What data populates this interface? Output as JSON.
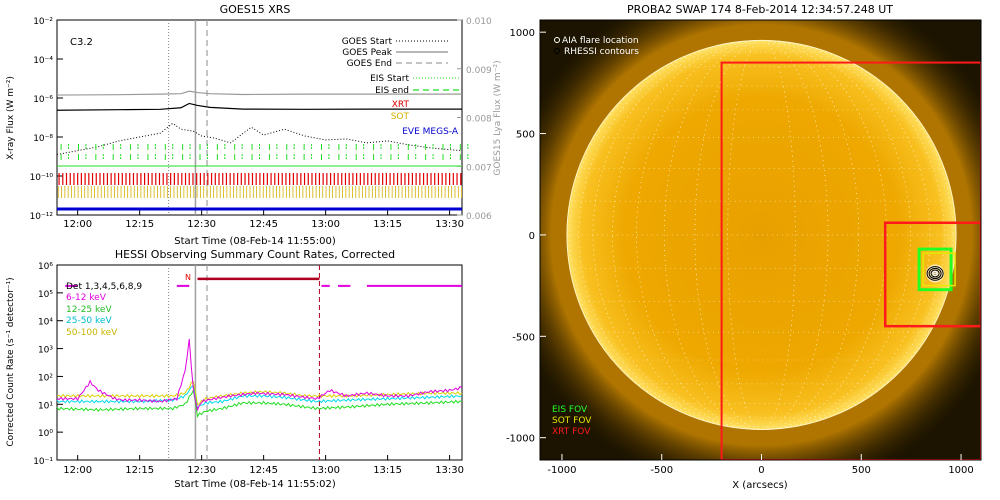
{
  "colors": {
    "black": "#000000",
    "grey": "#a0a0a0",
    "green": "#22dd22",
    "red": "#e00000",
    "gold": "#d4b000",
    "blue": "#0000d0",
    "magenta": "#e000e0",
    "cyan": "#00d8e8",
    "yellow": "#d8d000",
    "darkred": "#b00020",
    "sun_bg": "#0a0800",
    "fov_red": "#ff1a1a",
    "fov_green": "#22ff22",
    "fov_yellow": "#e8e800"
  },
  "chart_data": [
    {
      "type": "line",
      "title": "GOES15 XRS",
      "xlabel": "Start Time (08-Feb-14 11:55:00)",
      "ylabel": "X-ray Flux (W m⁻²)",
      "y2label": "GOES15 Lya Flux (W m⁻²)",
      "flare_class": "C3.2",
      "xticks": [
        "12:00",
        "12:15",
        "12:30",
        "12:45",
        "13:00",
        "13:15",
        "13:30"
      ],
      "xtick_minutes": [
        5,
        20,
        35,
        50,
        65,
        80,
        95
      ],
      "xlim_minutes": [
        0,
        98
      ],
      "ylim_log": [
        -12,
        -2
      ],
      "yticks": [
        "10⁻²",
        "10⁻⁴",
        "10⁻⁶",
        "10⁻⁸",
        "10⁻¹⁰",
        "10⁻¹²"
      ],
      "ytick_exponents": [
        -2,
        -4,
        -6,
        -8,
        -10,
        -12
      ],
      "y2lim": [
        0.006,
        0.01
      ],
      "y2ticks": [
        "0.010",
        "0.009",
        "0.008",
        "0.007",
        "0.006"
      ],
      "y2tick_values": [
        0.01,
        0.009,
        0.008,
        0.007,
        0.006
      ],
      "legend": {
        "goes_start": "GOES Start",
        "goes_peak": "GOES Peak",
        "goes_end": "GOES End",
        "eis_start": "EIS Start",
        "eis_end": "EIS end",
        "xrt": "XRT",
        "sot": "SOT",
        "eve": "EVE MEGS-A"
      },
      "markers_minutes": {
        "goes_start": 27,
        "goes_peak": 33.5,
        "goes_end": 36.3
      },
      "series": [
        {
          "name": "GOES long",
          "x": [
            0,
            15,
            25,
            30,
            32,
            34,
            37,
            45,
            60,
            75,
            90,
            98
          ],
          "log_flux": [
            -6.63,
            -6.6,
            -6.58,
            -6.5,
            -6.28,
            -6.38,
            -6.48,
            -6.57,
            -6.58,
            -6.57,
            -6.57,
            -6.57
          ]
        },
        {
          "name": "GOES short",
          "x": [
            0,
            15,
            25,
            30,
            32,
            34,
            37,
            45,
            60,
            75,
            90,
            98
          ],
          "log_flux": [
            -5.85,
            -5.83,
            -5.8,
            -5.78,
            -5.65,
            -5.72,
            -5.78,
            -5.82,
            -5.8,
            -5.8,
            -5.8,
            -5.8
          ]
        },
        {
          "name": "Lyman-alpha",
          "x": [
            0,
            5,
            10,
            15,
            20,
            25,
            28,
            30,
            33,
            35,
            38,
            42,
            47,
            50,
            55,
            60,
            65,
            70,
            75,
            80,
            85,
            90,
            95,
            98
          ],
          "log_flux": [
            -8.9,
            -8.7,
            -8.5,
            -8.2,
            -8.0,
            -7.8,
            -7.3,
            -7.6,
            -7.7,
            -7.95,
            -8.05,
            -8.3,
            -7.5,
            -7.9,
            -7.6,
            -7.95,
            -8.15,
            -8.1,
            -8.3,
            -8.2,
            -8.4,
            -8.55,
            -8.65,
            -8.7
          ]
        }
      ]
    },
    {
      "type": "line",
      "title": "HESSI Observing Summary Count Rates, Corrected",
      "xlabel": "Start Time (08-Feb-14 11:55:02)",
      "ylabel": "Corrected Count Rate (s⁻¹ detector⁻¹)",
      "xticks": [
        "12:00",
        "12:15",
        "12:30",
        "12:45",
        "13:00",
        "13:15",
        "13:30"
      ],
      "xtick_minutes": [
        5,
        20,
        35,
        50,
        65,
        80,
        95
      ],
      "xlim_minutes": [
        0,
        98
      ],
      "ylim_log": [
        -1,
        6
      ],
      "yticks": [
        "10⁶",
        "10⁵",
        "10⁴",
        "10³",
        "10²",
        "10¹",
        "10⁰",
        "10⁻¹"
      ],
      "ytick_exponents": [
        6,
        5,
        4,
        3,
        2,
        1,
        0,
        -1
      ],
      "legend": {
        "det": "Det 1,3,4,5,6,8,9",
        "b1": "6-12 keV",
        "b2": "12-25 keV",
        "b3": "25-50 keV",
        "b4": "50-100 keV"
      },
      "night_label": "N",
      "flags": {
        "magenta_segments": [
          [
            2,
            5
          ],
          [
            64,
            66
          ],
          [
            68,
            71
          ],
          [
            75,
            98
          ]
        ],
        "darkred_segments": [
          [
            34,
            63.5
          ]
        ],
        "level_exponent": 5.25
      },
      "vlines_minutes": {
        "peak": 33.5,
        "dashed_grey": 36.3,
        "red_dashed": 63.5,
        "dotted_grey": 27
      },
      "series": [
        {
          "name": "6-12 keV",
          "x": [
            0,
            5,
            8,
            10,
            12,
            14,
            16,
            20,
            25,
            29,
            31,
            32,
            33,
            34,
            35,
            38,
            42,
            48,
            55,
            60,
            63,
            66,
            70,
            75,
            80,
            85,
            90,
            95,
            98
          ],
          "log_rate": [
            1.2,
            1.2,
            1.8,
            1.5,
            1.35,
            1.2,
            1.15,
            1.15,
            1.1,
            1.2,
            2.2,
            3.3,
            1.5,
            0.8,
            1.1,
            1.2,
            1.3,
            1.4,
            1.35,
            1.25,
            1.2,
            1.5,
            1.3,
            1.4,
            1.3,
            1.3,
            1.45,
            1.5,
            1.6
          ]
        },
        {
          "name": "12-25 keV",
          "x": [
            0,
            10,
            20,
            28,
            31,
            33,
            34,
            36,
            40,
            45,
            50,
            55,
            60,
            63,
            70,
            80,
            90,
            98
          ],
          "log_rate": [
            0.85,
            0.8,
            0.85,
            0.85,
            1.0,
            1.5,
            0.6,
            0.75,
            0.85,
            1.05,
            1.05,
            1.0,
            0.9,
            0.85,
            0.9,
            1.0,
            1.05,
            1.1
          ]
        },
        {
          "name": "25-50 keV",
          "x": [
            0,
            10,
            20,
            28,
            31,
            33,
            34,
            36,
            40,
            45,
            50,
            55,
            60,
            63,
            70,
            80,
            90,
            98
          ],
          "log_rate": [
            1.1,
            1.1,
            1.1,
            1.15,
            1.3,
            1.7,
            0.9,
            1.05,
            1.1,
            1.3,
            1.3,
            1.25,
            1.15,
            1.1,
            1.15,
            1.2,
            1.25,
            1.3
          ]
        },
        {
          "name": "50-100 keV",
          "x": [
            0,
            10,
            20,
            28,
            31,
            33,
            34,
            36,
            40,
            45,
            50,
            55,
            60,
            63,
            70,
            80,
            90,
            98
          ],
          "log_rate": [
            1.3,
            1.3,
            1.3,
            1.3,
            1.4,
            1.85,
            1.0,
            1.2,
            1.3,
            1.4,
            1.45,
            1.4,
            1.3,
            1.3,
            1.3,
            1.35,
            1.4,
            1.4
          ]
        }
      ]
    },
    {
      "type": "image",
      "title": "PROBA2 SWAP 174 8-Feb-2014 12:34:57.248 UT",
      "xlabel": "X (arcsecs)",
      "xticks": [
        "-1000",
        "-500",
        "0",
        "500",
        "1000"
      ],
      "xtick_values": [
        -1000,
        -500,
        0,
        500,
        1000
      ],
      "yticks": [
        "1000",
        "500",
        "0",
        "-500",
        "-1000"
      ],
      "ytick_values": [
        1000,
        500,
        0,
        -500,
        -1000
      ],
      "xlim": [
        -1110,
        1100
      ],
      "ylim": [
        -1110,
        1060
      ],
      "solar_radius_arcsec": 975,
      "legend": {
        "aia": "AIA flare location",
        "rhessi": "RHESSI contours"
      },
      "fov_labels": {
        "eis": "EIS FOV",
        "sot": "SOT FOV",
        "xrt": "XRT FOV"
      },
      "fov_boxes_arcsec": {
        "xrt": [
          -200,
          -1110,
          1100,
          850
        ],
        "eis_outer": [
          620,
          -450,
          1100,
          60
        ],
        "sot": [
          810,
          -250,
          970,
          -90
        ],
        "eis_inner": [
          790,
          -270,
          950,
          -70
        ]
      },
      "flare_location_arcsec": [
        870,
        -190
      ]
    }
  ]
}
